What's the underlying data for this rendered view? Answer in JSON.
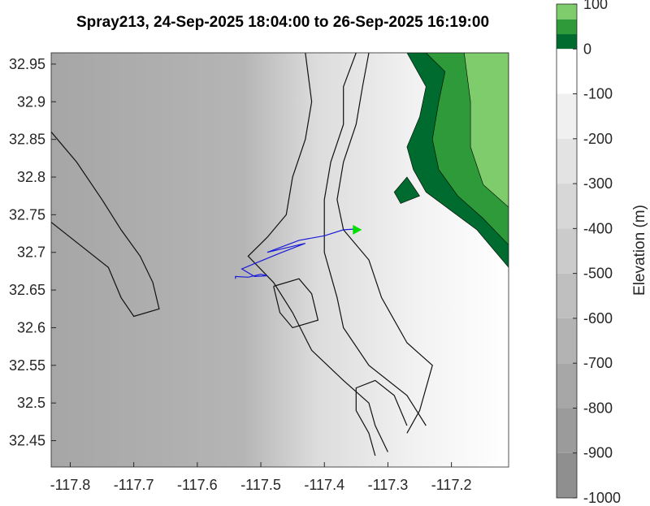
{
  "chart_data": {
    "type": "contour-map",
    "title": "Spray213, 24-Sep-2025 18:04:00 to 26-Sep-2025 16:19:00",
    "xlabel": "",
    "ylabel": "",
    "xlim": [
      -117.83,
      -117.11
    ],
    "ylim": [
      32.415,
      32.965
    ],
    "x_ticks": [
      "-117.8",
      "-117.7",
      "-117.6",
      "-117.5",
      "-117.4",
      "-117.3",
      "-117.2"
    ],
    "x_tick_values": [
      -117.8,
      -117.7,
      -117.6,
      -117.5,
      -117.4,
      -117.3,
      -117.2
    ],
    "y_ticks": [
      "32.45",
      "32.5",
      "32.55",
      "32.6",
      "32.65",
      "32.7",
      "32.75",
      "32.8",
      "32.85",
      "32.9",
      "32.95"
    ],
    "y_tick_values": [
      32.45,
      32.5,
      32.55,
      32.6,
      32.65,
      32.7,
      32.75,
      32.8,
      32.85,
      32.9,
      32.95
    ],
    "colorbar": {
      "label": "Elevation (m)",
      "ticks": [
        "100",
        "0",
        "-100",
        "-200",
        "-300",
        "-400",
        "-500",
        "-600",
        "-700",
        "-800",
        "-900",
        "-1000"
      ],
      "tick_values": [
        100,
        0,
        -100,
        -200,
        -300,
        -400,
        -500,
        -600,
        -700,
        -800,
        -900,
        -1000
      ],
      "land_colors": [
        "#7fcc6d",
        "#2e9a3a",
        "#006b2e"
      ],
      "ocean_colors": [
        "#ffffff",
        "#f0f0f0",
        "#e3e3e3",
        "#d7d7d7",
        "#cbcbcb",
        "#bfbfbf",
        "#b3b3b3",
        "#a7a7a7",
        "#9b9b9b",
        "#8f8f8f"
      ]
    },
    "track": {
      "name": "Spray213",
      "color": "#1a1ad9",
      "points": [
        [
          -117.54,
          32.665
        ],
        [
          -117.54,
          32.668
        ],
        [
          -117.52,
          32.667
        ],
        [
          -117.5,
          32.671
        ],
        [
          -117.49,
          32.669
        ],
        [
          -117.51,
          32.668
        ],
        [
          -117.53,
          32.678
        ],
        [
          -117.51,
          32.685
        ],
        [
          -117.47,
          32.699
        ],
        [
          -117.43,
          32.712
        ],
        [
          -117.49,
          32.7
        ],
        [
          -117.44,
          32.716
        ],
        [
          -117.4,
          32.722
        ],
        [
          -117.37,
          32.73
        ],
        [
          -117.35,
          32.731
        ]
      ]
    },
    "end_marker": {
      "lon": -117.35,
      "lat": 32.73,
      "color": "#00dd00"
    },
    "isobaths": [
      {
        "level": "inner",
        "points": [
          [
            -117.35,
            32.965
          ],
          [
            -117.37,
            32.92
          ],
          [
            -117.37,
            32.87
          ],
          [
            -117.39,
            32.82
          ],
          [
            -117.4,
            32.77
          ],
          [
            -117.4,
            32.7
          ],
          [
            -117.38,
            32.64
          ],
          [
            -117.37,
            32.6
          ],
          [
            -117.33,
            32.55
          ],
          [
            -117.27,
            32.51
          ],
          [
            -117.24,
            32.47
          ]
        ]
      },
      {
        "level": "middle",
        "points": [
          [
            -117.33,
            32.965
          ],
          [
            -117.34,
            32.92
          ],
          [
            -117.35,
            32.87
          ],
          [
            -117.37,
            32.82
          ],
          [
            -117.38,
            32.77
          ],
          [
            -117.37,
            32.73
          ],
          [
            -117.33,
            32.69
          ],
          [
            -117.31,
            32.64
          ],
          [
            -117.27,
            32.58
          ],
          [
            -117.23,
            32.55
          ],
          [
            -117.25,
            32.49
          ],
          [
            -117.27,
            32.46
          ]
        ]
      },
      {
        "level": "outer",
        "points": [
          [
            -117.43,
            32.965
          ],
          [
            -117.42,
            32.9
          ],
          [
            -117.43,
            32.85
          ],
          [
            -117.45,
            32.8
          ],
          [
            -117.46,
            32.75
          ],
          [
            -117.49,
            32.72
          ],
          [
            -117.52,
            32.695
          ],
          [
            -117.48,
            32.66
          ],
          [
            -117.45,
            32.62
          ],
          [
            -117.42,
            32.57
          ],
          [
            -117.37,
            32.53
          ],
          [
            -117.33,
            32.5
          ],
          [
            -117.32,
            32.47
          ],
          [
            -117.3,
            32.435
          ]
        ]
      },
      {
        "level": "west-ridge",
        "points": [
          [
            -117.83,
            32.86
          ],
          [
            -117.79,
            32.82
          ],
          [
            -117.75,
            32.77
          ],
          [
            -117.72,
            32.73
          ],
          [
            -117.69,
            32.695
          ],
          [
            -117.67,
            32.66
          ],
          [
            -117.66,
            32.625
          ],
          [
            -117.7,
            32.615
          ],
          [
            -117.72,
            32.64
          ],
          [
            -117.74,
            32.68
          ],
          [
            -117.8,
            32.72
          ],
          [
            -117.83,
            32.74
          ]
        ]
      },
      {
        "level": "south-bank",
        "points": [
          [
            -117.32,
            32.43
          ],
          [
            -117.33,
            32.46
          ],
          [
            -117.35,
            32.49
          ],
          [
            -117.35,
            32.52
          ],
          [
            -117.32,
            32.53
          ],
          [
            -117.29,
            32.51
          ],
          [
            -117.27,
            32.47
          ]
        ]
      },
      {
        "level": "mid-bank",
        "points": [
          [
            -117.48,
            32.655
          ],
          [
            -117.44,
            32.665
          ],
          [
            -117.42,
            32.645
          ],
          [
            -117.41,
            32.61
          ],
          [
            -117.45,
            32.6
          ],
          [
            -117.47,
            32.62
          ],
          [
            -117.48,
            32.655
          ]
        ]
      }
    ],
    "land_patches": [
      {
        "level": "0",
        "color": "#006b2e",
        "points": [
          [
            -117.27,
            32.965
          ],
          [
            -117.11,
            32.965
          ],
          [
            -117.11,
            32.68
          ],
          [
            -117.16,
            32.73
          ],
          [
            -117.2,
            32.755
          ],
          [
            -117.24,
            32.78
          ],
          [
            -117.26,
            32.81
          ],
          [
            -117.27,
            32.84
          ],
          [
            -117.25,
            32.88
          ],
          [
            -117.24,
            32.92
          ]
        ]
      },
      {
        "level": "50",
        "color": "#2e9a3a",
        "points": [
          [
            -117.24,
            32.965
          ],
          [
            -117.11,
            32.965
          ],
          [
            -117.11,
            32.71
          ],
          [
            -117.15,
            32.745
          ],
          [
            -117.19,
            32.775
          ],
          [
            -117.22,
            32.81
          ],
          [
            -117.23,
            32.85
          ],
          [
            -117.22,
            32.9
          ],
          [
            -117.21,
            32.94
          ]
        ]
      },
      {
        "level": "100",
        "color": "#7fcc6d",
        "points": [
          [
            -117.18,
            32.965
          ],
          [
            -117.11,
            32.965
          ],
          [
            -117.11,
            32.76
          ],
          [
            -117.15,
            32.79
          ],
          [
            -117.17,
            32.84
          ],
          [
            -117.17,
            32.9
          ]
        ]
      },
      {
        "level": "island",
        "color": "#006b2e",
        "points": [
          [
            -117.27,
            32.8
          ],
          [
            -117.25,
            32.775
          ],
          [
            -117.28,
            32.765
          ],
          [
            -117.29,
            32.78
          ]
        ]
      }
    ]
  }
}
